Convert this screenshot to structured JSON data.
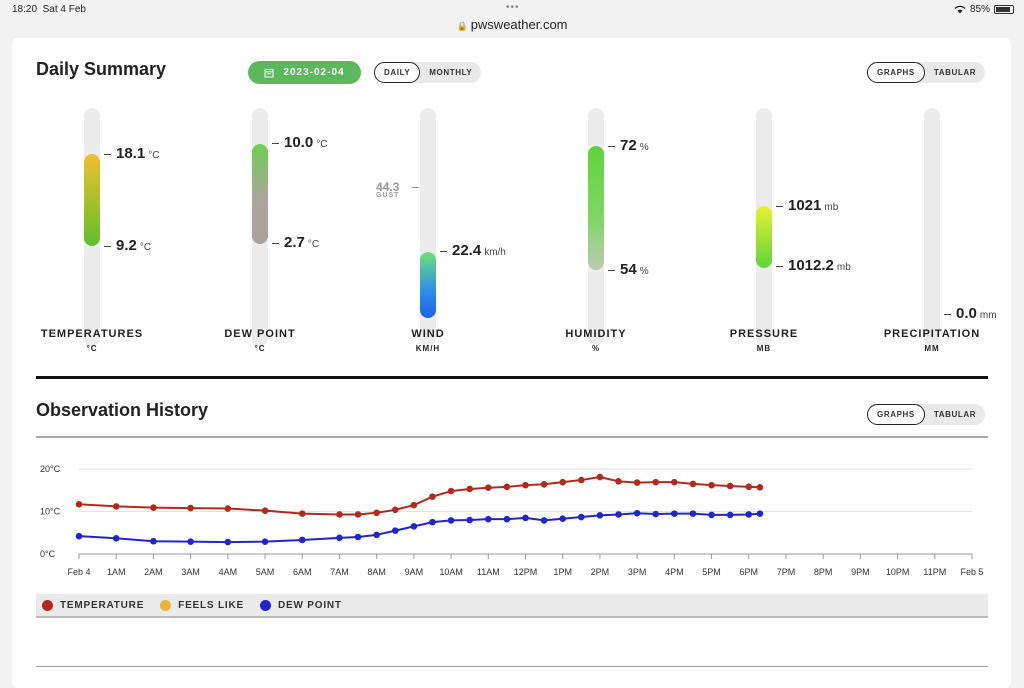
{
  "status_bar": {
    "time": "18:20",
    "date": "Sat 4 Feb",
    "url": "pwsweather.com",
    "battery": "85%"
  },
  "daily_summary": {
    "title": "Daily Summary",
    "date": "2023-02-04",
    "period_toggle": {
      "daily": "DAILY",
      "monthly": "MONTHLY",
      "selected": "DAILY"
    },
    "view_toggle": {
      "graphs": "GRAPHS",
      "tabular": "TABULAR",
      "selected": "GRAPHS"
    },
    "gauges": [
      {
        "label": "TEMPERATURES",
        "unit_label": "°C",
        "high": "18.1",
        "low": "9.2",
        "unit": "°C"
      },
      {
        "label": "DEW POINT",
        "unit_label": "°C",
        "high": "10.0",
        "low": "2.7",
        "unit": "°C"
      },
      {
        "label": "WIND",
        "unit_label": "KM/H",
        "value": "22.4",
        "unit": "km/h",
        "gust": "44.3",
        "gust_label": "GUST"
      },
      {
        "label": "HUMIDITY",
        "unit_label": "%",
        "high": "72",
        "low": "54",
        "unit": "%"
      },
      {
        "label": "PRESSURE",
        "unit_label": "MB",
        "high": "1021",
        "low": "1012.2",
        "unit": "mb"
      },
      {
        "label": "PRECIPITATION",
        "unit_label": "MM",
        "value": "0.0",
        "unit": "mm"
      }
    ]
  },
  "observation_history": {
    "title": "Observation History",
    "view_toggle": {
      "graphs": "GRAPHS",
      "tabular": "TABULAR",
      "selected": "GRAPHS"
    },
    "legend": [
      {
        "name": "TEMPERATURE",
        "color": "#b22a1e"
      },
      {
        "name": "FEELS LIKE",
        "color": "#e8b33a"
      },
      {
        "name": "DEW POINT",
        "color": "#1f27c8"
      }
    ]
  },
  "chart_data": {
    "type": "scatter",
    "y_tick_labels": [
      "20°C",
      "10°C",
      "0°C"
    ],
    "ylim": [
      0,
      20
    ],
    "x_tick_labels": [
      "Feb 4",
      "1AM",
      "2AM",
      "3AM",
      "4AM",
      "5AM",
      "6AM",
      "7AM",
      "8AM",
      "9AM",
      "10AM",
      "11AM",
      "12PM",
      "1PM",
      "2PM",
      "3PM",
      "4PM",
      "5PM",
      "6PM",
      "7PM",
      "8PM",
      "9PM",
      "10PM",
      "11PM",
      "Feb 5"
    ],
    "xlim_hours": [
      0,
      24
    ],
    "grid": true,
    "series": [
      {
        "name": "TEMPERATURE",
        "color": "#b22a1e",
        "x": [
          0,
          1,
          2,
          3,
          4,
          5,
          6,
          7,
          7.5,
          8,
          8.5,
          9,
          9.5,
          10,
          10.5,
          11,
          11.5,
          12,
          12.5,
          13,
          13.5,
          14,
          14.5,
          15,
          15.5,
          16,
          16.5,
          17,
          17.5,
          18,
          18.3
        ],
        "y": [
          11.7,
          11.2,
          10.9,
          10.8,
          10.7,
          10.2,
          9.5,
          9.3,
          9.3,
          9.7,
          10.4,
          11.5,
          13.5,
          14.8,
          15.3,
          15.6,
          15.8,
          16.2,
          16.4,
          16.9,
          17.4,
          18.1,
          17.1,
          16.8,
          16.9,
          16.9,
          16.5,
          16.2,
          16.0,
          15.8,
          15.7
        ]
      },
      {
        "name": "DEW POINT",
        "color": "#1f27c8",
        "x": [
          0,
          1,
          2,
          3,
          4,
          5,
          6,
          7,
          7.5,
          8,
          8.5,
          9,
          9.5,
          10,
          10.5,
          11,
          11.5,
          12,
          12.5,
          13,
          13.5,
          14,
          14.5,
          15,
          15.5,
          16,
          16.5,
          17,
          17.5,
          18,
          18.3
        ],
        "y": [
          4.2,
          3.7,
          3.0,
          2.9,
          2.8,
          2.9,
          3.3,
          3.8,
          4.0,
          4.5,
          5.5,
          6.5,
          7.5,
          7.9,
          8.0,
          8.2,
          8.2,
          8.5,
          7.9,
          8.3,
          8.7,
          9.1,
          9.3,
          9.6,
          9.4,
          9.5,
          9.5,
          9.2,
          9.2,
          9.3,
          9.5
        ]
      }
    ]
  }
}
